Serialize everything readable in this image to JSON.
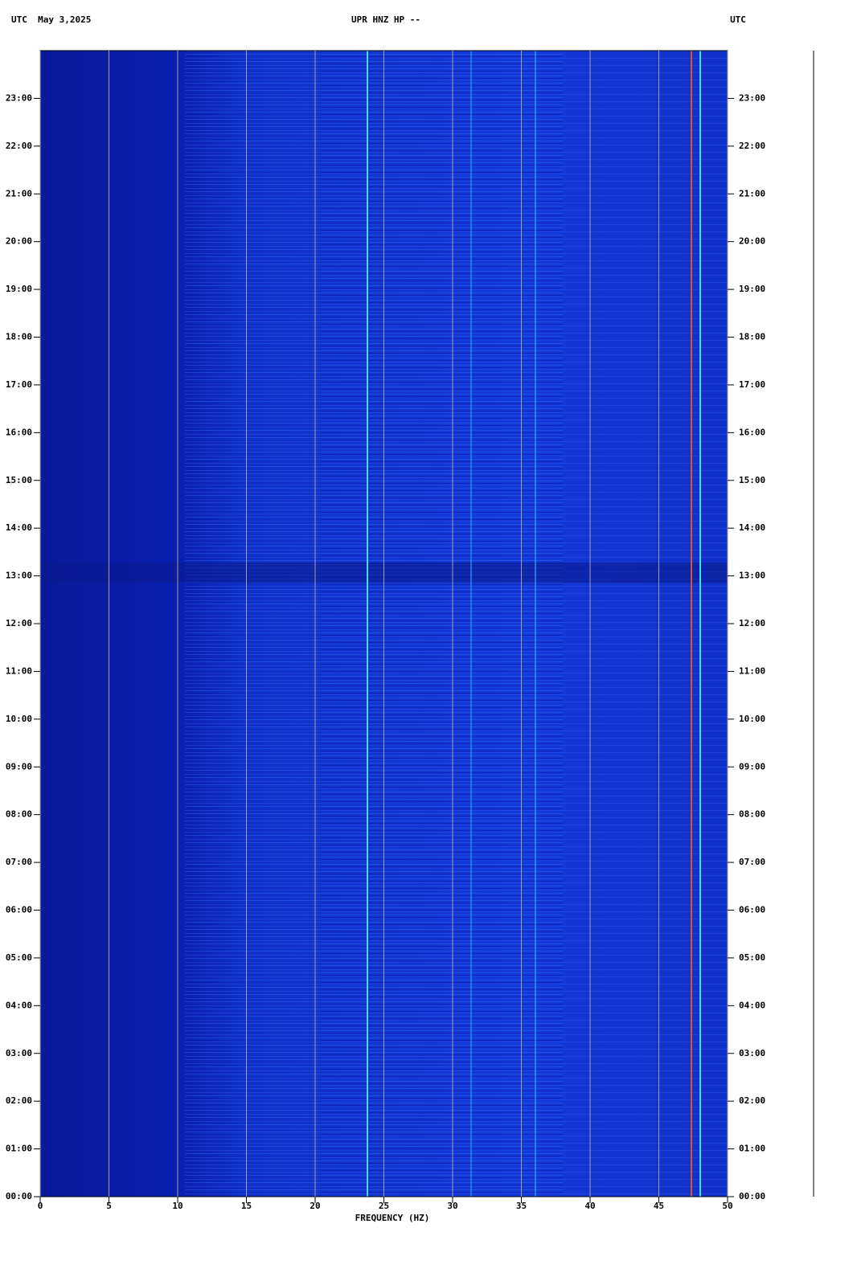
{
  "chart_data": {
    "type": "spectrogram",
    "title": "UPR HNZ HP --",
    "date_label": "UTC  May 3,2025",
    "right_label": "UTC",
    "xlabel": "FREQUENCY (HZ)",
    "xlim": [
      0,
      50
    ],
    "xticks": [
      0,
      5,
      10,
      15,
      20,
      25,
      30,
      35,
      40,
      45,
      50
    ],
    "ylim": [
      0,
      24
    ],
    "yticks": [
      {
        "value": 0,
        "label": "00:00"
      },
      {
        "value": 1,
        "label": "01:00"
      },
      {
        "value": 2,
        "label": "02:00"
      },
      {
        "value": 3,
        "label": "03:00"
      },
      {
        "value": 4,
        "label": "04:00"
      },
      {
        "value": 5,
        "label": "05:00"
      },
      {
        "value": 6,
        "label": "06:00"
      },
      {
        "value": 7,
        "label": "07:00"
      },
      {
        "value": 8,
        "label": "08:00"
      },
      {
        "value": 9,
        "label": "09:00"
      },
      {
        "value": 10,
        "label": "10:00"
      },
      {
        "value": 11,
        "label": "11:00"
      },
      {
        "value": 12,
        "label": "12:00"
      },
      {
        "value": 13,
        "label": "13:00"
      },
      {
        "value": 14,
        "label": "14:00"
      },
      {
        "value": 15,
        "label": "15:00"
      },
      {
        "value": 16,
        "label": "16:00"
      },
      {
        "value": 17,
        "label": "17:00"
      },
      {
        "value": 18,
        "label": "18:00"
      },
      {
        "value": 19,
        "label": "19:00"
      },
      {
        "value": 20,
        "label": "20:00"
      },
      {
        "value": 21,
        "label": "21:00"
      },
      {
        "value": 22,
        "label": "22:00"
      },
      {
        "value": 23,
        "label": "23:00"
      }
    ],
    "grid": true
  }
}
